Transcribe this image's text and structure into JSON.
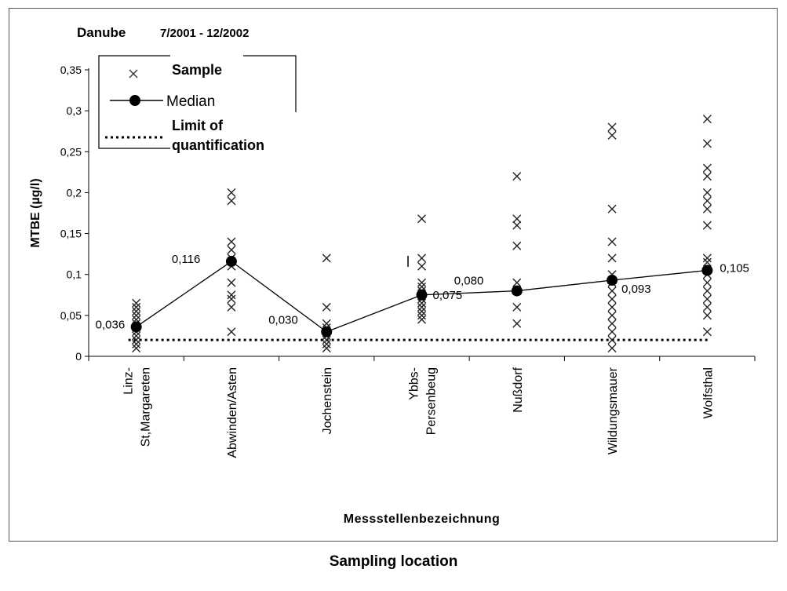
{
  "chart_data": {
    "type": "scatter",
    "title": "Danube",
    "subtitle": "7/2001 - 12/2002",
    "xlabel": "Messstellenbezeichnung",
    "ylabel": "MTBE (µg/l)",
    "ylim": [
      0,
      0.35
    ],
    "yticks": [
      "0",
      "0,05",
      "0,1",
      "0,15",
      "0,2",
      "0,25",
      "0,3",
      "0,35"
    ],
    "categories": [
      [
        "Linz-",
        "St,Margareten"
      ],
      [
        "Abwinden/Asten"
      ],
      [
        "Jochenstein"
      ],
      [
        "Ybbs-",
        "Persenbeug"
      ],
      [
        "Nußdorf"
      ],
      [
        "Wildungsmauer"
      ],
      [
        "Wolfsthal"
      ]
    ],
    "legend": {
      "placement": "top-left",
      "sample": "Sample",
      "median": "Median",
      "loq_line1": "Limit of",
      "loq_line2": "quantification"
    },
    "series": [
      {
        "name": "Sample",
        "marker": "x",
        "points": [
          [
            0.065,
            0.06,
            0.055,
            0.05,
            0.045,
            0.04,
            0.035,
            0.03,
            0.025,
            0.02,
            0.015,
            0.01
          ],
          [
            0.2,
            0.19,
            0.14,
            0.13,
            0.12,
            0.11,
            0.09,
            0.075,
            0.07,
            0.06,
            0.03
          ],
          [
            0.12,
            0.06,
            0.04,
            0.035,
            0.03,
            0.025,
            0.02,
            0.015,
            0.01
          ],
          [
            0.168,
            0.12,
            0.11,
            0.09,
            0.085,
            0.08,
            0.075,
            0.07,
            0.065,
            0.06,
            0.055,
            0.05,
            0.045
          ],
          [
            0.22,
            0.168,
            0.16,
            0.135,
            0.09,
            0.08,
            0.06,
            0.04
          ],
          [
            0.28,
            0.27,
            0.18,
            0.14,
            0.12,
            0.1,
            0.09,
            0.08,
            0.07,
            0.06,
            0.05,
            0.04,
            0.03,
            0.02,
            0.01
          ],
          [
            0.29,
            0.26,
            0.23,
            0.22,
            0.2,
            0.19,
            0.18,
            0.16,
            0.12,
            0.115,
            0.1,
            0.09,
            0.08,
            0.07,
            0.06,
            0.05,
            0.03
          ]
        ]
      },
      {
        "name": "Median",
        "values": [
          0.036,
          0.116,
          0.03,
          0.075,
          0.08,
          0.093,
          0.105
        ],
        "labels": [
          "0,036",
          "0,116",
          "0,030",
          "0,075",
          "0,080",
          "0,093",
          "0,105"
        ]
      },
      {
        "name": "Limit of quantification",
        "value": 0.02
      }
    ]
  },
  "caption": "Sampling location"
}
